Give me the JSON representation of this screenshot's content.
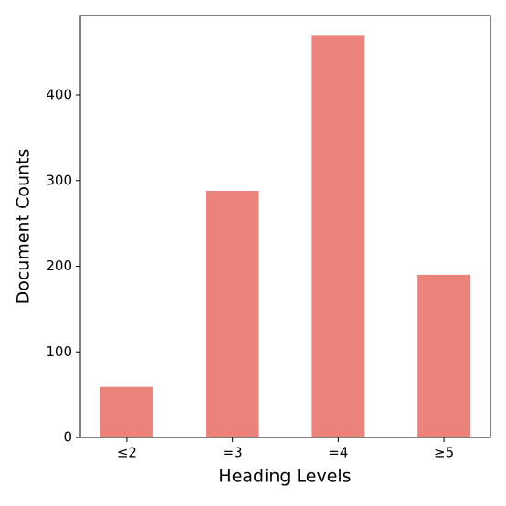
{
  "chart_data": {
    "type": "bar",
    "x_label": "Heading Levels",
    "y_label": "Document Counts",
    "categories": [
      "≤2",
      "=3",
      "=4",
      "≥5"
    ],
    "values": [
      59,
      288,
      470,
      190
    ],
    "color": "#eb837a",
    "ylim": [
      0,
      492.8
    ],
    "yticks": [
      0,
      100,
      200,
      300,
      400
    ],
    "grid": false
  }
}
